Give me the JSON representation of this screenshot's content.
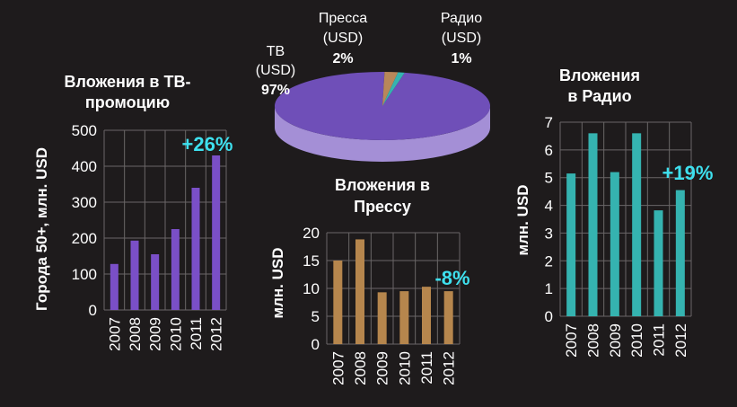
{
  "chart_data": [
    {
      "type": "pie",
      "slices": [
        {
          "name_line1": "ТВ",
          "name_line2": "(USD)",
          "pct_label": "97%",
          "value": 97,
          "color": "#6f4fb8"
        },
        {
          "name_line1": "Пресса",
          "name_line2": "(USD)",
          "pct_label": "2%",
          "value": 2,
          "color": "#b8875a"
        },
        {
          "name_line1": "Радио",
          "name_line2": "(USD)",
          "pct_label": "1%",
          "value": 1,
          "color": "#35b3b0"
        }
      ]
    },
    {
      "type": "bar",
      "title_line1": "Вложения в ТВ-",
      "title_line2": "промоцию",
      "ylabel": "Города 50+, млн. USD",
      "categories": [
        "2007",
        "2008",
        "2009",
        "2010",
        "2011",
        "2012"
      ],
      "values": [
        128,
        193,
        155,
        225,
        340,
        430
      ],
      "ylim": [
        0,
        500
      ],
      "yticks": [
        "0",
        "100",
        "200",
        "300",
        "400",
        "500"
      ],
      "growth_label": "+26%",
      "color": "#7a4fc7",
      "grid": true
    },
    {
      "type": "bar",
      "title_line1": "Вложения в",
      "title_line2": "Прессу",
      "ylabel": "млн. USD",
      "categories": [
        "2007",
        "2008",
        "2009",
        "2010",
        "2011",
        "2012"
      ],
      "values": [
        15,
        18.8,
        9.3,
        9.5,
        10.3,
        9.5
      ],
      "ylim": [
        0,
        20
      ],
      "yticks": [
        "0",
        "5",
        "10",
        "15",
        "20"
      ],
      "growth_label": "-8%",
      "color": "#b6864d",
      "grid": true
    },
    {
      "type": "bar",
      "title_line1": "Вложения",
      "title_line2": "в Радио",
      "ylabel": "млн. USD",
      "categories": [
        "2007",
        "2008",
        "2009",
        "2010",
        "2011",
        "2012"
      ],
      "values": [
        5.15,
        6.6,
        5.2,
        6.6,
        3.82,
        4.55
      ],
      "ylim": [
        0,
        7
      ],
      "yticks": [
        "0",
        "1",
        "2",
        "3",
        "4",
        "5",
        "6",
        "7"
      ],
      "growth_label": "+19%",
      "color": "#35b3b0",
      "grid": true
    }
  ]
}
